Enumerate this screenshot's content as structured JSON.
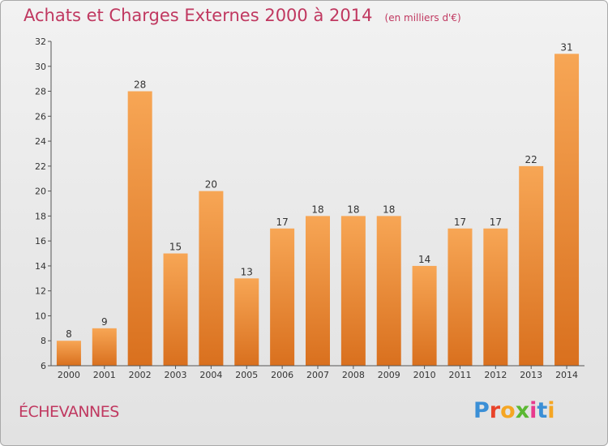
{
  "chart_data": {
    "type": "bar",
    "title": "Achats et Charges Externes 2000 à 2014",
    "subtitle": "(en milliers d'€)",
    "categories": [
      "2000",
      "2001",
      "2002",
      "2003",
      "2004",
      "2005",
      "2006",
      "2007",
      "2008",
      "2009",
      "2010",
      "2011",
      "2012",
      "2013",
      "2014"
    ],
    "values": [
      8,
      9,
      28,
      15,
      20,
      13,
      17,
      18,
      18,
      18,
      14,
      17,
      17,
      22,
      31
    ],
    "ylim": [
      6,
      32
    ],
    "yticks": [
      6,
      8,
      10,
      12,
      14,
      16,
      18,
      20,
      22,
      24,
      26,
      28,
      30,
      32
    ],
    "grid": false,
    "legend": "none",
    "bar_color_top": "#f7a655",
    "bar_color_bottom": "#d9701e"
  },
  "footer": {
    "commune": "ÉCHEVANNES",
    "logo_letters": [
      "P",
      "r",
      "o",
      "x",
      "i",
      "t",
      "i"
    ],
    "logo_colors": [
      "#3b8fd6",
      "#e8432a",
      "#f5a623",
      "#5bb833",
      "#e83a8d",
      "#3b8fd6",
      "#f5a623"
    ]
  },
  "colors": {
    "title": "#c03860",
    "axis": "#555555"
  }
}
